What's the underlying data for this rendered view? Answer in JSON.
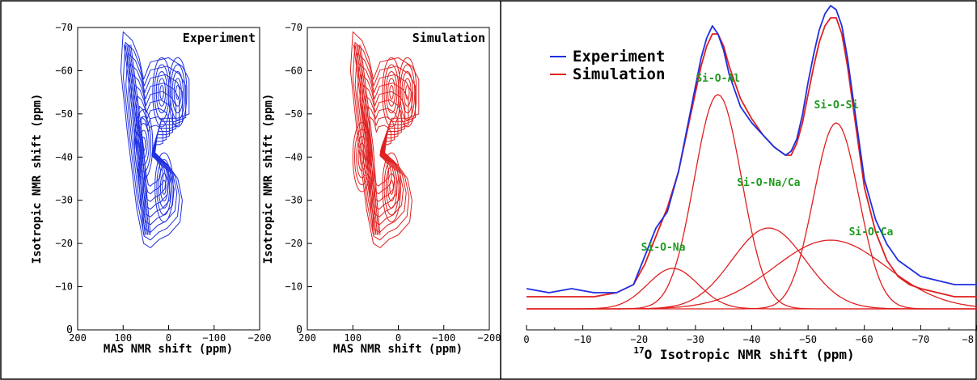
{
  "chart_data": [
    {
      "type": "contour",
      "panel_label": "Experiment",
      "xlabel": "MAS NMR shift (ppm)",
      "ylabel": "Isotropic NMR shift (ppm)",
      "xlim": [
        200,
        -200
      ],
      "ylim": [
        0,
        -70
      ],
      "xticks": [
        "200",
        "100",
        "0",
        "−100",
        "−200"
      ],
      "yticks": [
        "0",
        "−10",
        "−20",
        "−30",
        "−40",
        "−50",
        "−60",
        "−70"
      ],
      "color": "#1f2fe0",
      "peaks": [
        {
          "x": 55,
          "y": -43
        },
        {
          "x": 10,
          "y": -33
        },
        {
          "x": 15,
          "y": -55
        },
        {
          "x": -20,
          "y": -55
        }
      ]
    },
    {
      "type": "contour",
      "panel_label": "Simulation",
      "xlabel": "MAS NMR shift (ppm)",
      "ylabel": "Isotropic NMR shift (ppm)",
      "xlim": [
        200,
        -200
      ],
      "ylim": [
        0,
        -70
      ],
      "xticks": [
        "200",
        "100",
        "0",
        "−100",
        "−200"
      ],
      "yticks": [
        "0",
        "−10",
        "−20",
        "−30",
        "−40",
        "−50",
        "−60",
        "−70"
      ],
      "color": "#e01f1f",
      "peaks": [
        {
          "x": 80,
          "y": -40
        },
        {
          "x": 15,
          "y": -33
        },
        {
          "x": 15,
          "y": -55
        },
        {
          "x": -20,
          "y": -55
        }
      ]
    },
    {
      "type": "line",
      "xlabel_prefix": "17",
      "xlabel": "O Isotropic NMR shift (ppm)",
      "xlim": [
        0,
        -80
      ],
      "xticks": [
        "0",
        "−10",
        "−20",
        "−30",
        "−40",
        "−50",
        "−60",
        "−70",
        "−8"
      ],
      "legend": "top-left",
      "series": [
        {
          "name": "Experiment",
          "color": "#1f2fe0",
          "x": [
            0,
            -4,
            -8,
            -12,
            -16,
            -19,
            -21,
            -23,
            -25,
            -27,
            -29,
            -31,
            -32,
            -33,
            -34,
            -35,
            -36,
            -38,
            -40,
            -42,
            -44,
            -46,
            -47,
            -48,
            -49,
            -50,
            -51,
            -52,
            -53,
            -54,
            -55,
            -56,
            -57,
            -58,
            -59,
            -60,
            -62,
            -64,
            -66,
            -68,
            -70,
            -73,
            -76,
            -80
          ],
          "y": [
            0.05,
            0.04,
            0.05,
            0.04,
            0.04,
            0.06,
            0.13,
            0.2,
            0.24,
            0.34,
            0.48,
            0.62,
            0.67,
            0.7,
            0.68,
            0.64,
            0.58,
            0.5,
            0.46,
            0.43,
            0.4,
            0.38,
            0.39,
            0.42,
            0.48,
            0.56,
            0.63,
            0.69,
            0.73,
            0.75,
            0.74,
            0.7,
            0.62,
            0.52,
            0.42,
            0.32,
            0.22,
            0.16,
            0.12,
            0.1,
            0.08,
            0.07,
            0.06,
            0.06
          ]
        },
        {
          "name": "Simulation",
          "color": "#e01f1f",
          "x": [
            0,
            -4,
            -8,
            -12,
            -16,
            -19,
            -21,
            -23,
            -25,
            -27,
            -29,
            -31,
            -32,
            -33,
            -34,
            -35,
            -36,
            -38,
            -40,
            -42,
            -44,
            -46,
            -47,
            -48,
            -49,
            -50,
            -51,
            -52,
            -53,
            -54,
            -55,
            -56,
            -57,
            -58,
            -59,
            -60,
            -62,
            -64,
            -66,
            -68,
            -70,
            -73,
            -76,
            -80
          ],
          "y": [
            0.03,
            0.03,
            0.03,
            0.03,
            0.04,
            0.06,
            0.11,
            0.18,
            0.25,
            0.34,
            0.47,
            0.6,
            0.65,
            0.68,
            0.68,
            0.65,
            0.6,
            0.52,
            0.47,
            0.43,
            0.4,
            0.38,
            0.38,
            0.41,
            0.46,
            0.53,
            0.6,
            0.66,
            0.7,
            0.72,
            0.72,
            0.68,
            0.6,
            0.5,
            0.4,
            0.3,
            0.19,
            0.12,
            0.08,
            0.06,
            0.05,
            0.04,
            0.03,
            0.03
          ]
        }
      ],
      "components": [
        {
          "label": "Si-O-Na",
          "color": "#e01f1f",
          "center": -26,
          "height": 0.1,
          "width": 4.5
        },
        {
          "label": "Si-O-Al",
          "color": "#e01f1f",
          "center": -34,
          "height": 0.53,
          "width": 4.2
        },
        {
          "label": "Si-O-Na/Ca",
          "color": "#e01f1f",
          "center": -43,
          "height": 0.2,
          "width": 6.5
        },
        {
          "label": "Si-O-Si",
          "color": "#e01f1f",
          "center": -55,
          "height": 0.46,
          "width": 4.0
        },
        {
          "label": "Si-O-Ca",
          "color": "#e01f1f",
          "center": -54,
          "height": 0.17,
          "width": 10.0
        }
      ]
    }
  ]
}
